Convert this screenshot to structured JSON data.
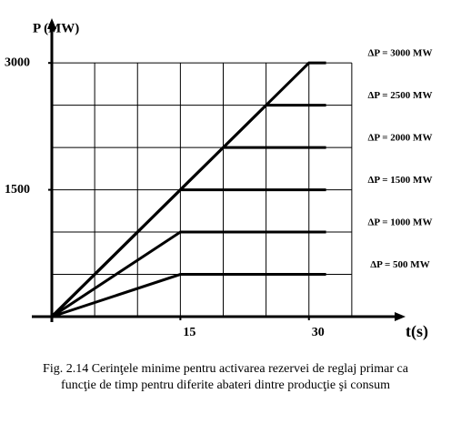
{
  "chart_data": {
    "type": "line",
    "y_label": "P (MW)",
    "x_label": "t(s)",
    "caption": [
      "Fig. 2.14 Cerinţele minime pentru activarea rezervei de reglaj primar ca",
      "funcţie de timp pentru diferite abateri dintre producţie şi consum"
    ],
    "xlim": [
      0,
      40
    ],
    "ylim": [
      0,
      3400
    ],
    "xticks": [
      15,
      30
    ],
    "yticks": [
      1500,
      3000
    ],
    "xgrid": [
      5,
      10,
      15,
      20,
      25,
      30,
      35
    ],
    "ygrid": [
      500,
      1000,
      1500,
      2000,
      2500,
      3000
    ],
    "grid": true,
    "color": "#000000",
    "series": [
      {
        "name": "ΔP = 3000 MW",
        "x": [
          0,
          30,
          32
        ],
        "values": [
          0,
          3000,
          3000
        ]
      },
      {
        "name": "ΔP = 2500 MW",
        "x": [
          0,
          25,
          32
        ],
        "values": [
          0,
          2500,
          2500
        ]
      },
      {
        "name": "ΔP = 2000 MW",
        "x": [
          0,
          20,
          32
        ],
        "values": [
          0,
          2000,
          2000
        ]
      },
      {
        "name": "ΔP = 1500 MW",
        "x": [
          0,
          15,
          32
        ],
        "values": [
          0,
          1500,
          1500
        ]
      },
      {
        "name": "ΔP = 1000 MW",
        "x": [
          0,
          15,
          32
        ],
        "values": [
          0,
          1000,
          1000
        ]
      },
      {
        "name": "ΔP = 500 MW",
        "x": [
          0,
          15,
          32
        ],
        "values": [
          0,
          500,
          500
        ]
      }
    ]
  }
}
